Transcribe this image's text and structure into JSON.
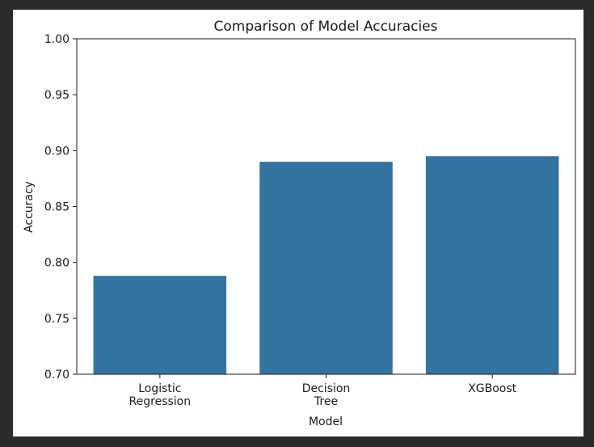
{
  "chart_data": {
    "type": "bar",
    "title": "Comparison of Model Accuracies",
    "xlabel": "Model",
    "ylabel": "Accuracy",
    "categories": [
      [
        "Logistic",
        "Regression"
      ],
      [
        "Decision",
        "Tree"
      ],
      [
        "XGBoost"
      ]
    ],
    "values": [
      0.788,
      0.89,
      0.895
    ],
    "ylim": [
      0.7,
      1.0
    ],
    "yticks": [
      "0.70",
      "0.75",
      "0.80",
      "0.85",
      "0.90",
      "0.95",
      "1.00"
    ],
    "bar_color": "#3274a1",
    "grid": false,
    "legend": "none"
  }
}
